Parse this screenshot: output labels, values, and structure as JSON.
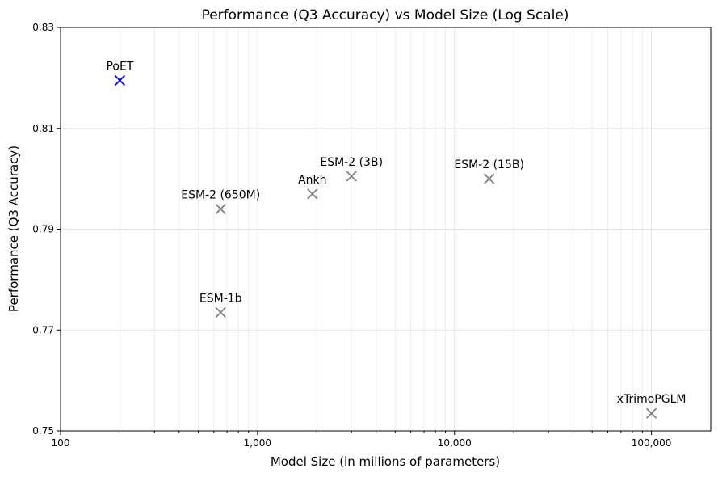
{
  "chart_data": {
    "type": "scatter",
    "title": "Performance (Q3 Accuracy) vs Model Size (Log Scale)",
    "xlabel": "Model Size (in millions of parameters)",
    "ylabel": "Performance (Q3 Accuracy)",
    "x_scale": "log",
    "xlim": [
      100,
      200000
    ],
    "ylim": [
      0.75,
      0.83
    ],
    "x_ticks": [
      100,
      1000,
      10000,
      100000
    ],
    "x_tick_labels": [
      "100",
      "1,000",
      "10,000",
      "100,000"
    ],
    "y_ticks": [
      0.75,
      0.77,
      0.79,
      0.81,
      0.83
    ],
    "y_tick_labels": [
      "0.75",
      "0.77",
      "0.79",
      "0.81",
      "0.83"
    ],
    "grid": true,
    "marker": "x",
    "points": [
      {
        "label": "PoET",
        "x": 200,
        "y": 0.8195,
        "color": "#0000ff"
      },
      {
        "label": "ESM-2 (650M)",
        "x": 650,
        "y": 0.794,
        "color": "#808080"
      },
      {
        "label": "ESM-1b",
        "x": 650,
        "y": 0.7735,
        "color": "#808080"
      },
      {
        "label": "Ankh",
        "x": 1900,
        "y": 0.797,
        "color": "#808080"
      },
      {
        "label": "ESM-2 (3B)",
        "x": 3000,
        "y": 0.8005,
        "color": "#808080"
      },
      {
        "label": "ESM-2 (15B)",
        "x": 15000,
        "y": 0.8,
        "color": "#808080"
      },
      {
        "label": "xTrimoPGLM",
        "x": 100000,
        "y": 0.7535,
        "color": "#808080"
      }
    ]
  }
}
